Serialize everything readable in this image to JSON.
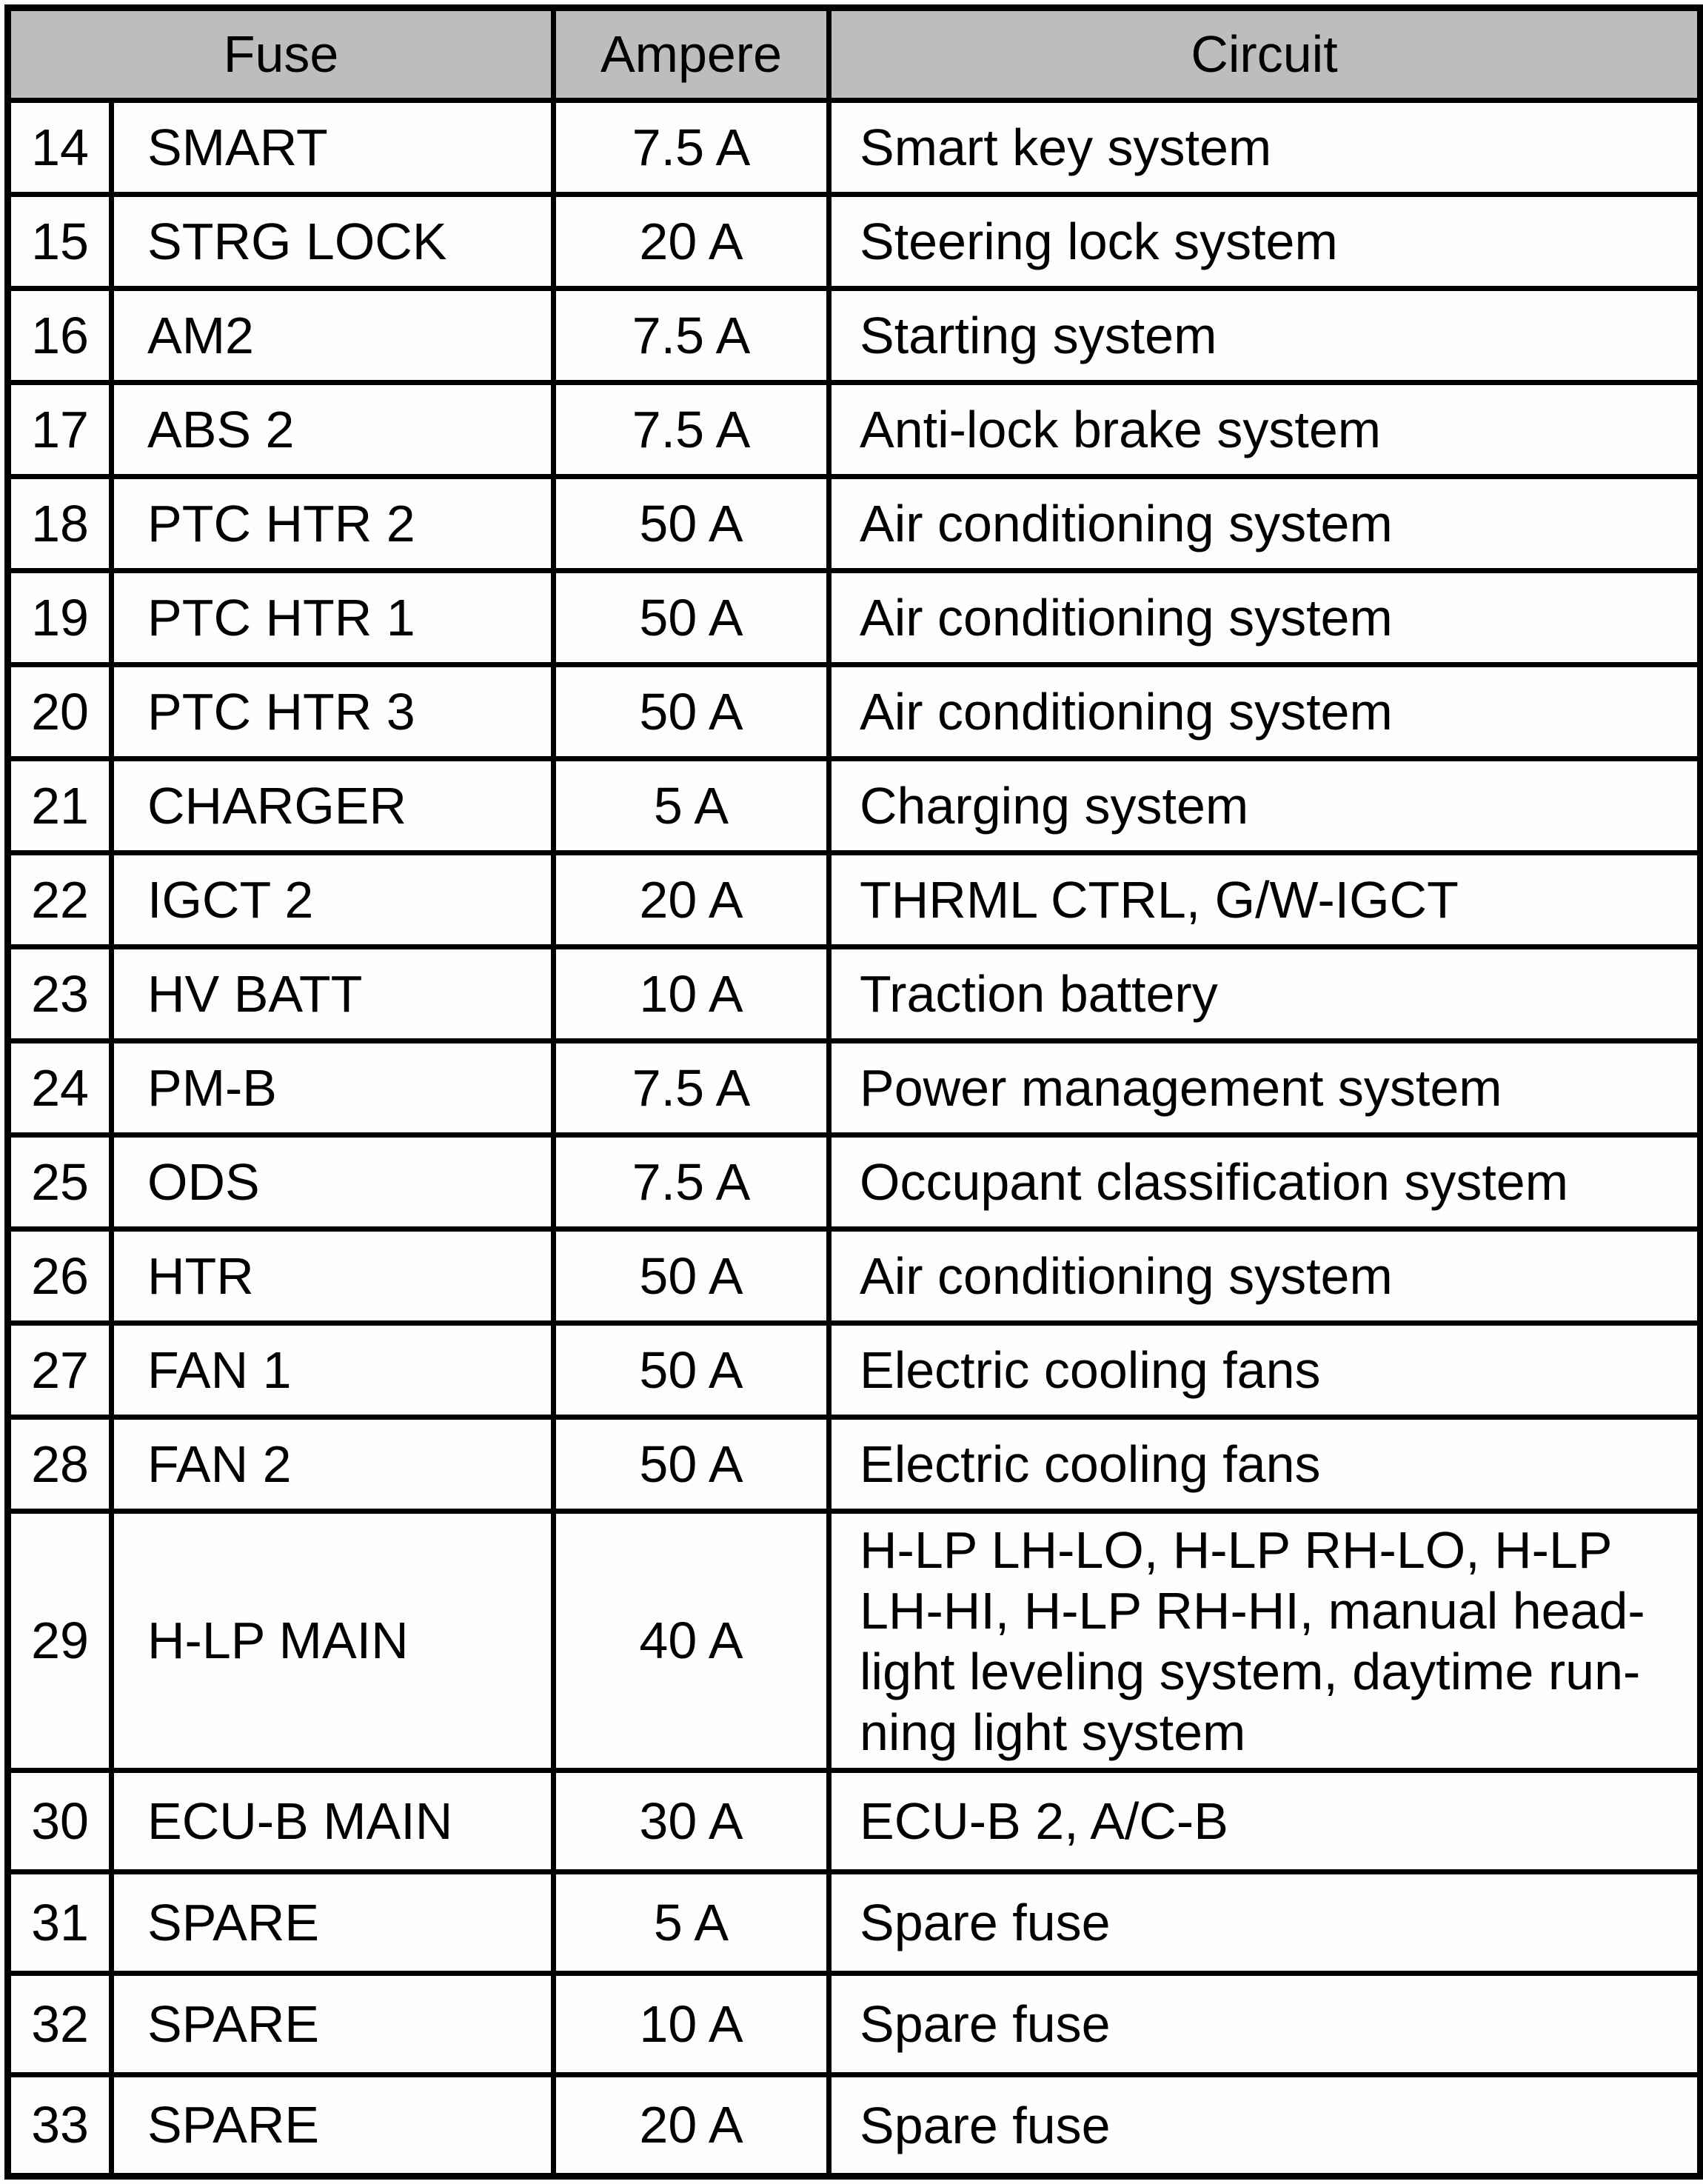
{
  "table": {
    "headers": {
      "fuse": "Fuse",
      "ampere": "Ampere",
      "circuit": "Circuit"
    },
    "rows": [
      {
        "num": "14",
        "name": "SMART",
        "ampere": "7.5 A",
        "circuit": "Smart key system"
      },
      {
        "num": "15",
        "name": "STRG LOCK",
        "ampere": "20 A",
        "circuit": "Steering lock system"
      },
      {
        "num": "16",
        "name": "AM2",
        "ampere": "7.5 A",
        "circuit": "Starting system"
      },
      {
        "num": "17",
        "name": "ABS 2",
        "ampere": "7.5 A",
        "circuit": "Anti-lock brake system"
      },
      {
        "num": "18",
        "name": "PTC HTR 2",
        "ampere": "50 A",
        "circuit": "Air conditioning system"
      },
      {
        "num": "19",
        "name": "PTC HTR 1",
        "ampere": "50 A",
        "circuit": "Air conditioning system"
      },
      {
        "num": "20",
        "name": "PTC HTR 3",
        "ampere": "50 A",
        "circuit": "Air conditioning system"
      },
      {
        "num": "21",
        "name": "CHARGER",
        "ampere": "5 A",
        "circuit": "Charging system"
      },
      {
        "num": "22",
        "name": "IGCT 2",
        "ampere": "20 A",
        "circuit": "THRML CTRL, G/W-IGCT"
      },
      {
        "num": "23",
        "name": "HV BATT",
        "ampere": "10 A",
        "circuit": "Traction battery"
      },
      {
        "num": "24",
        "name": "PM-B",
        "ampere": "7.5 A",
        "circuit": "Power management system"
      },
      {
        "num": "25",
        "name": "ODS",
        "ampere": "7.5 A",
        "circuit": "Occupant classification system"
      },
      {
        "num": "26",
        "name": "HTR",
        "ampere": "50 A",
        "circuit": "Air conditioning system"
      },
      {
        "num": "27",
        "name": "FAN 1",
        "ampere": "50 A",
        "circuit": "Electric cooling fans"
      },
      {
        "num": "28",
        "name": "FAN 2",
        "ampere": "50 A",
        "circuit": "Electric cooling fans"
      },
      {
        "num": "29",
        "name": "H-LP MAIN",
        "ampere": "40 A",
        "circuit": "H-LP LH-LO, H-LP RH-LO, H-LP\nLH-HI, H-LP RH-HI, manual head-\nlight leveling system, daytime run-\nning light system"
      },
      {
        "num": "30",
        "name": "ECU-B MAIN",
        "ampere": "30 A",
        "circuit": "ECU-B 2, A/C-B"
      },
      {
        "num": "31",
        "name": "SPARE",
        "ampere": "5 A",
        "circuit": "Spare fuse"
      },
      {
        "num": "32",
        "name": "SPARE",
        "ampere": "10 A",
        "circuit": "Spare fuse"
      },
      {
        "num": "33",
        "name": "SPARE",
        "ampere": "20 A",
        "circuit": "Spare fuse"
      }
    ]
  },
  "colors": {
    "header_bg": "#bdbdbd",
    "border": "#000000",
    "cell_bg": "#fefefe"
  }
}
